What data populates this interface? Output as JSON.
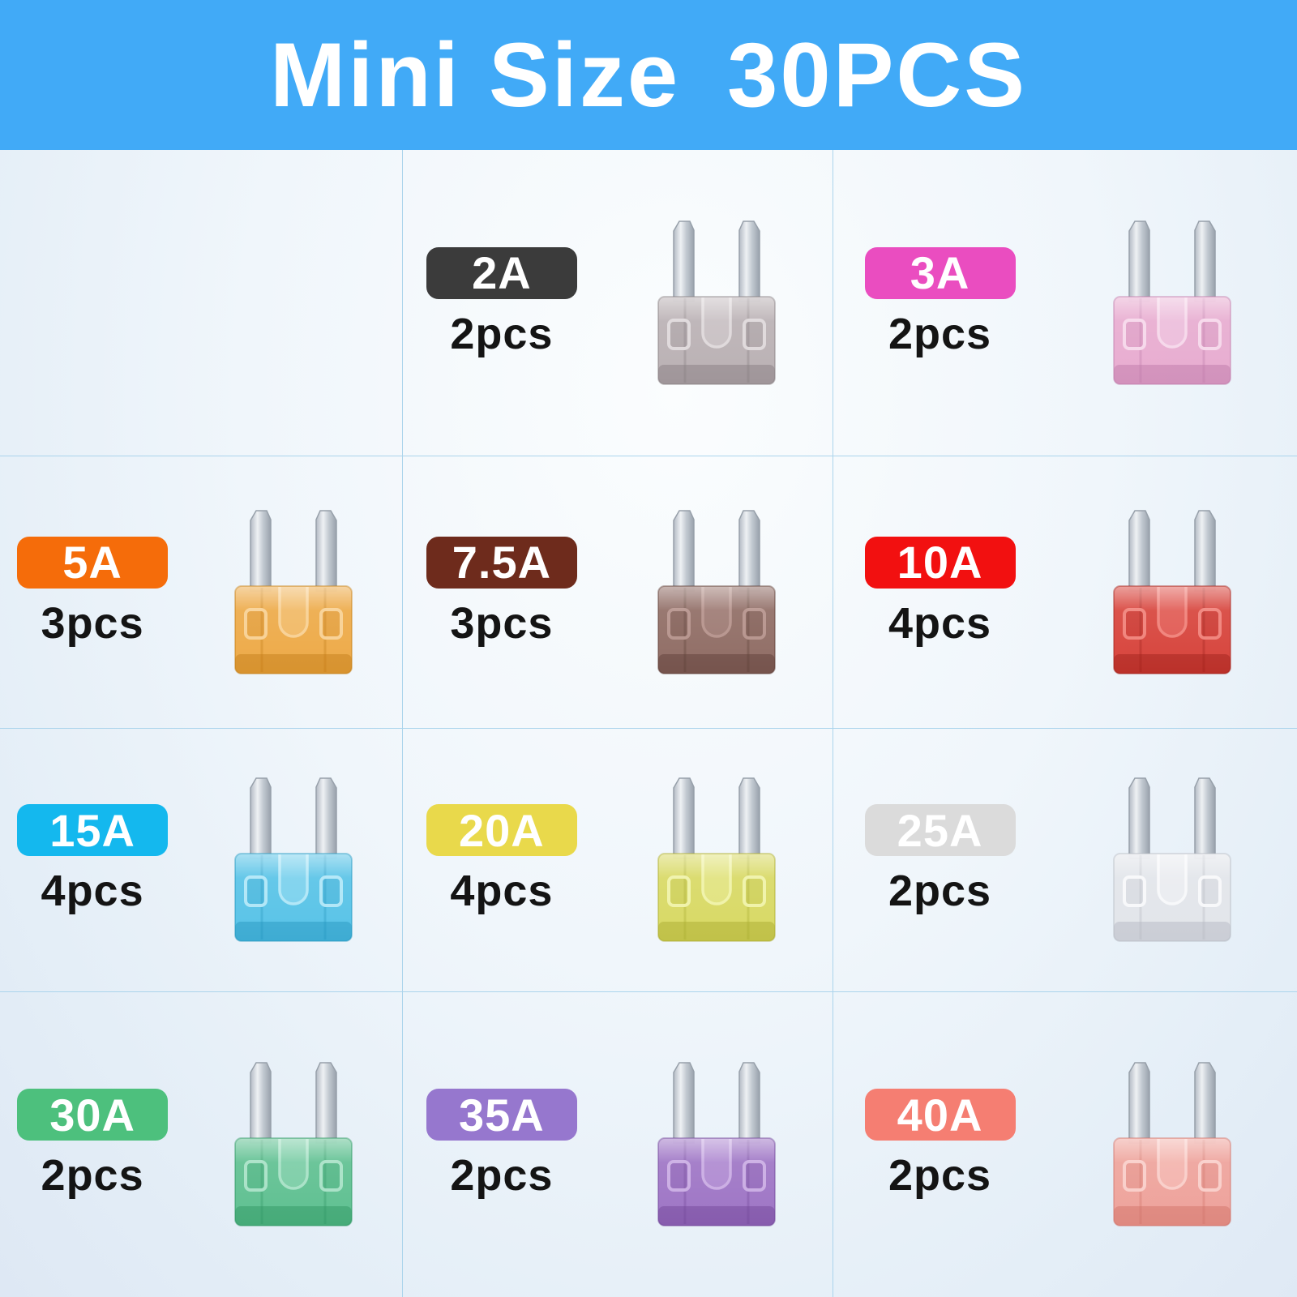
{
  "banner": {
    "title_left": "Mini Size",
    "title_right": "30PCS"
  },
  "theme": {
    "banner_bg": "#41aaf7",
    "banner_text_color": "#ffffff",
    "background_center": "#fbfdfe",
    "background_edge": "#dee8f4",
    "grid_line_color": "#abd4ec",
    "count_text_color": "#141414",
    "metal_color": "#c3cad2"
  },
  "items": [
    {
      "amp": "2A",
      "count": "2pcs",
      "badge_color": "#3b3b3b",
      "fuse_body": "#b6adb0",
      "fuse_dark": "#857c7f",
      "fuse_light": "#ded8da"
    },
    {
      "amp": "3A",
      "count": "2pcs",
      "badge_color": "#ea4dc0",
      "fuse_body": "#e7a8cd",
      "fuse_dark": "#bd77a8",
      "fuse_light": "#f6d7ea"
    },
    {
      "amp": "5A",
      "count": "3pcs",
      "badge_color": "#f56c0a",
      "fuse_body": "#eca53e",
      "fuse_dark": "#c47c15",
      "fuse_light": "#f8d092"
    },
    {
      "amp": "7.5A",
      "count": "3pcs",
      "badge_color": "#6e2b1c",
      "fuse_body": "#8a655d",
      "fuse_dark": "#5c3c35",
      "fuse_light": "#b5928b"
    },
    {
      "amp": "10A",
      "count": "4pcs",
      "badge_color": "#f21010",
      "fuse_body": "#d63a31",
      "fuse_dark": "#9f1d17",
      "fuse_light": "#f08078"
    },
    {
      "amp": "15A",
      "count": "4pcs",
      "badge_color": "#14b8ee",
      "fuse_body": "#50c0e6",
      "fuse_dark": "#2395bf",
      "fuse_light": "#aee6f7"
    },
    {
      "amp": "20A",
      "count": "4pcs",
      "badge_color": "#e9d94b",
      "fuse_body": "#d6d75c",
      "fuse_dark": "#a9ab2e",
      "fuse_light": "#eff2a6"
    },
    {
      "amp": "25A",
      "count": "2pcs",
      "badge_color": "#dbdbdb",
      "fuse_body": "#e2e4e9",
      "fuse_dark": "#b4b8c1",
      "fuse_light": "#f7f8fa"
    },
    {
      "amp": "30A",
      "count": "2pcs",
      "badge_color": "#4dc07d",
      "fuse_body": "#57bd8b",
      "fuse_dark": "#2e9562",
      "fuse_light": "#a6e1c5"
    },
    {
      "amp": "35A",
      "count": "2pcs",
      "badge_color": "#9677ce",
      "fuse_body": "#9a6ec2",
      "fuse_dark": "#6f4497",
      "fuse_light": "#c9abe3"
    },
    {
      "amp": "40A",
      "count": "2pcs",
      "badge_color": "#f57e72",
      "fuse_body": "#ee9e96",
      "fuse_dark": "#cf6f65",
      "fuse_light": "#f9cdc8"
    }
  ]
}
